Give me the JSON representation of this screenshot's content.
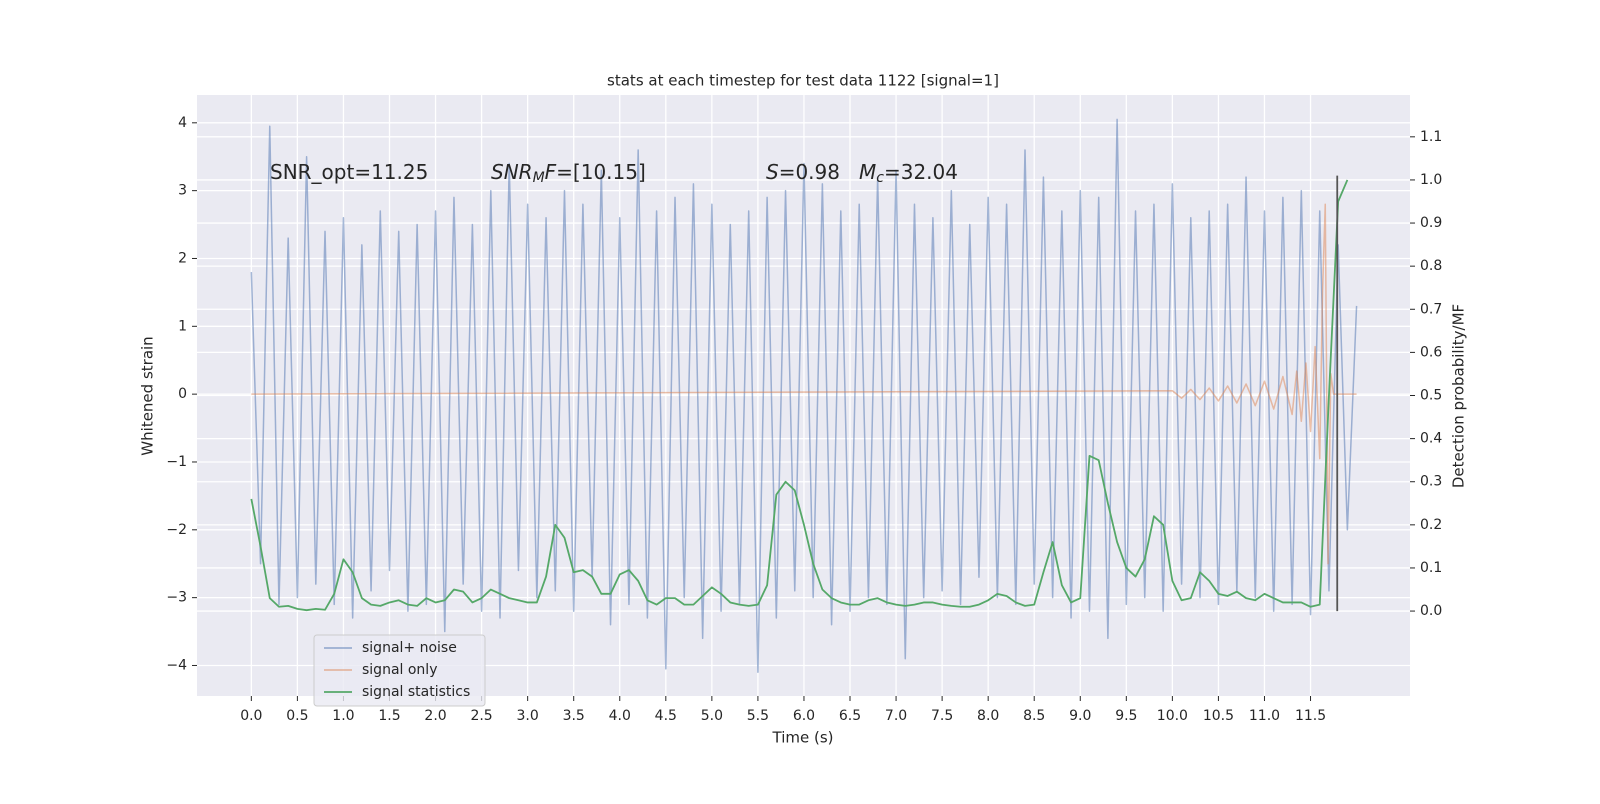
{
  "chart_data": {
    "type": "line",
    "title": "stats at each timestep for test data 1122 [signal=1]",
    "xlabel": "Time (s)",
    "ylabel": "Whitened strain",
    "y2label": "Detection probability/MF",
    "xlim": [
      -0.59,
      12.58
    ],
    "ylim": [
      -4.45,
      4.41
    ],
    "y2lim": [
      -0.197,
      1.197
    ],
    "xticks": [
      {
        "value": 0,
        "label": "0.0"
      },
      0.5,
      {
        "value": 1,
        "label": "1.0"
      },
      1.5,
      {
        "value": 2,
        "label": "2.0"
      },
      2.5,
      {
        "value": 3,
        "label": "3.0"
      },
      3.5,
      {
        "value": 4,
        "label": "4.0"
      },
      4.5,
      {
        "value": 5,
        "label": "5.0"
      },
      5.5,
      {
        "value": 6,
        "label": "6.0"
      },
      6.5,
      {
        "value": 7,
        "label": "7.0"
      },
      7.5,
      {
        "value": 8,
        "label": "8.0"
      },
      8.5,
      {
        "value": 9,
        "label": "9.0"
      },
      9.5,
      {
        "value": 10,
        "label": "10.0"
      },
      10.5,
      {
        "value": 11,
        "label": "11.0"
      },
      11.5
    ],
    "yticks": [
      {
        "value": -4,
        "label": "−4"
      },
      {
        "value": -3,
        "label": "−3"
      },
      {
        "value": -2,
        "label": "−2"
      },
      {
        "value": -1,
        "label": "−1"
      },
      0,
      1,
      2,
      3,
      4
    ],
    "y2ticks": [
      {
        "value": 0,
        "label": "0.0"
      },
      0.1,
      0.2,
      0.3,
      0.4,
      0.5,
      0.6,
      0.7,
      0.8,
      0.9,
      {
        "value": 1,
        "label": "1.0"
      },
      1.1
    ],
    "grid": true,
    "legend": "lower left",
    "annotations": [
      {
        "parts": [
          {
            "text": "SNR_opt=11.25"
          }
        ]
      },
      {
        "parts": [
          {
            "text": "SNR",
            "style": "italic"
          },
          {
            "text": "M",
            "style": "sub"
          },
          {
            "text": "F",
            "style": "italic"
          },
          {
            "text": "=[10.15]"
          }
        ]
      },
      {
        "parts": [
          {
            "text": "S",
            "style": "italic"
          },
          {
            "text": "=0.98"
          }
        ]
      },
      {
        "parts": [
          {
            "text": "M",
            "style": "italic"
          },
          {
            "text": "c",
            "style": "sub"
          },
          {
            "text": "=32.04"
          }
        ]
      }
    ],
    "vline": {
      "x": 11.79,
      "y2": [
        0,
        1.01
      ],
      "color": "#555555"
    },
    "series": [
      {
        "name": "signal+ noise",
        "color": "#4c72b0",
        "opacity": 0.5,
        "axis": "y",
        "x": [
          0.0,
          0.1,
          0.2,
          0.3,
          0.4,
          0.5,
          0.6,
          0.7,
          0.8,
          0.9,
          1.0,
          1.1,
          1.2,
          1.3,
          1.4,
          1.5,
          1.6,
          1.7,
          1.8,
          1.9,
          2.0,
          2.1,
          2.2,
          2.3,
          2.4,
          2.5,
          2.6,
          2.7,
          2.8,
          2.9,
          3.0,
          3.1,
          3.2,
          3.3,
          3.4,
          3.5,
          3.6,
          3.7,
          3.8,
          3.9,
          4.0,
          4.1,
          4.2,
          4.3,
          4.4,
          4.5,
          4.6,
          4.7,
          4.8,
          4.9,
          5.0,
          5.1,
          5.2,
          5.3,
          5.4,
          5.5,
          5.6,
          5.7,
          5.8,
          5.9,
          6.0,
          6.1,
          6.2,
          6.3,
          6.4,
          6.5,
          6.6,
          6.7,
          6.8,
          6.9,
          7.0,
          7.1,
          7.2,
          7.3,
          7.4,
          7.5,
          7.6,
          7.7,
          7.8,
          7.9,
          8.0,
          8.1,
          8.2,
          8.3,
          8.4,
          8.5,
          8.6,
          8.7,
          8.8,
          8.9,
          9.0,
          9.1,
          9.2,
          9.3,
          9.4,
          9.5,
          9.6,
          9.7,
          9.8,
          9.9,
          10.0,
          10.1,
          10.2,
          10.3,
          10.4,
          10.5,
          10.6,
          10.7,
          10.8,
          10.9,
          11.0,
          11.1,
          11.2,
          11.3,
          11.4,
          11.5,
          11.6,
          11.7,
          11.8,
          11.9,
          12.0
        ],
        "values": [
          1.8,
          -2.5,
          3.95,
          -3.1,
          2.3,
          -3.0,
          3.5,
          -2.8,
          2.4,
          -3.1,
          2.6,
          -3.3,
          2.2,
          -2.9,
          2.7,
          -2.6,
          2.4,
          -3.2,
          2.5,
          -3.1,
          2.7,
          -3.5,
          2.9,
          -2.8,
          2.5,
          -3.2,
          3.0,
          -3.3,
          3.4,
          -2.6,
          2.8,
          -3.0,
          2.6,
          -2.9,
          3.0,
          -3.2,
          2.8,
          -2.7,
          3.3,
          -3.4,
          2.6,
          -3.1,
          3.6,
          -3.3,
          2.7,
          -4.05,
          2.9,
          -3.0,
          3.1,
          -3.6,
          2.8,
          -3.2,
          2.5,
          -3.1,
          2.7,
          -4.1,
          2.9,
          -3.3,
          3.0,
          -2.9,
          3.4,
          -3.0,
          3.1,
          -3.4,
          2.7,
          -3.2,
          2.8,
          -3.0,
          3.2,
          -3.1,
          3.3,
          -3.9,
          2.8,
          -3.0,
          2.6,
          -2.9,
          3.0,
          -3.1,
          2.5,
          -2.7,
          2.9,
          -3.0,
          2.8,
          -3.1,
          3.6,
          -2.8,
          3.2,
          -3.0,
          2.7,
          -3.3,
          3.0,
          -3.2,
          2.9,
          -3.6,
          4.05,
          -3.1,
          2.7,
          -3.0,
          2.8,
          -3.2,
          3.1,
          -2.8,
          2.6,
          -3.0,
          2.7,
          -3.1,
          2.8,
          -2.9,
          3.2,
          -3.0,
          2.7,
          -3.2,
          2.9,
          -3.1,
          3.0,
          -3.25,
          2.7,
          -2.9,
          2.2,
          -2.0,
          1.3
        ]
      },
      {
        "name": "signal only",
        "color": "#dd8452",
        "opacity": 0.5,
        "axis": "y",
        "x": [
          0.0,
          10.0,
          10.1,
          10.2,
          10.3,
          10.4,
          10.5,
          10.6,
          10.7,
          10.8,
          10.9,
          11.0,
          11.1,
          11.2,
          11.3,
          11.35,
          11.4,
          11.45,
          11.5,
          11.55,
          11.6,
          11.63,
          11.66,
          11.69,
          11.72,
          11.75,
          12.0
        ],
        "values": [
          0,
          0.05,
          -0.06,
          0.07,
          -0.08,
          0.09,
          -0.1,
          0.12,
          -0.13,
          0.15,
          -0.17,
          0.19,
          -0.22,
          0.26,
          -0.3,
          0.34,
          -0.4,
          0.46,
          -0.55,
          0.7,
          -0.95,
          1.5,
          2.8,
          -2.5,
          0.3,
          0,
          0
        ]
      },
      {
        "name": "signal statistics",
        "color": "#55a868",
        "opacity": 1,
        "axis": "y2",
        "x": [
          0.0,
          0.1,
          0.2,
          0.3,
          0.4,
          0.5,
          0.6,
          0.7,
          0.8,
          0.9,
          1.0,
          1.1,
          1.2,
          1.3,
          1.4,
          1.5,
          1.6,
          1.7,
          1.8,
          1.9,
          2.0,
          2.1,
          2.2,
          2.3,
          2.4,
          2.5,
          2.6,
          2.7,
          2.8,
          2.9,
          3.0,
          3.1,
          3.2,
          3.3,
          3.4,
          3.5,
          3.6,
          3.7,
          3.8,
          3.9,
          4.0,
          4.1,
          4.2,
          4.3,
          4.4,
          4.5,
          4.6,
          4.7,
          4.8,
          4.9,
          5.0,
          5.1,
          5.2,
          5.3,
          5.4,
          5.5,
          5.6,
          5.7,
          5.8,
          5.9,
          6.0,
          6.1,
          6.2,
          6.3,
          6.4,
          6.5,
          6.6,
          6.7,
          6.8,
          6.9,
          7.0,
          7.1,
          7.2,
          7.3,
          7.4,
          7.5,
          7.6,
          7.7,
          7.8,
          7.9,
          8.0,
          8.1,
          8.2,
          8.3,
          8.4,
          8.5,
          8.6,
          8.7,
          8.8,
          8.9,
          9.0,
          9.1,
          9.2,
          9.3,
          9.4,
          9.5,
          9.6,
          9.7,
          9.8,
          9.9,
          10.0,
          10.1,
          10.2,
          10.3,
          10.4,
          10.5,
          10.6,
          10.7,
          10.8,
          10.9,
          11.0,
          11.1,
          11.2,
          11.3,
          11.4,
          11.5,
          11.6,
          11.7,
          11.8,
          11.9
        ],
        "values": [
          0.26,
          0.15,
          0.03,
          0.01,
          0.012,
          0.005,
          0.002,
          0.005,
          0.003,
          0.04,
          0.12,
          0.09,
          0.03,
          0.015,
          0.012,
          0.02,
          0.025,
          0.015,
          0.012,
          0.03,
          0.02,
          0.025,
          0.05,
          0.045,
          0.02,
          0.03,
          0.05,
          0.04,
          0.03,
          0.025,
          0.02,
          0.02,
          0.08,
          0.2,
          0.17,
          0.09,
          0.095,
          0.08,
          0.04,
          0.04,
          0.085,
          0.095,
          0.07,
          0.025,
          0.015,
          0.03,
          0.03,
          0.015,
          0.015,
          0.035,
          0.055,
          0.04,
          0.02,
          0.015,
          0.012,
          0.015,
          0.06,
          0.27,
          0.3,
          0.28,
          0.2,
          0.11,
          0.05,
          0.03,
          0.02,
          0.015,
          0.015,
          0.025,
          0.03,
          0.02,
          0.015,
          0.012,
          0.015,
          0.02,
          0.02,
          0.015,
          0.012,
          0.01,
          0.01,
          0.015,
          0.025,
          0.04,
          0.035,
          0.02,
          0.012,
          0.015,
          0.09,
          0.16,
          0.06,
          0.02,
          0.03,
          0.36,
          0.35,
          0.25,
          0.16,
          0.1,
          0.08,
          0.12,
          0.22,
          0.2,
          0.07,
          0.025,
          0.03,
          0.09,
          0.07,
          0.04,
          0.035,
          0.045,
          0.03,
          0.025,
          0.04,
          0.03,
          0.02,
          0.02,
          0.02,
          0.01,
          0.015,
          0.5,
          0.95,
          1.0
        ]
      }
    ]
  }
}
